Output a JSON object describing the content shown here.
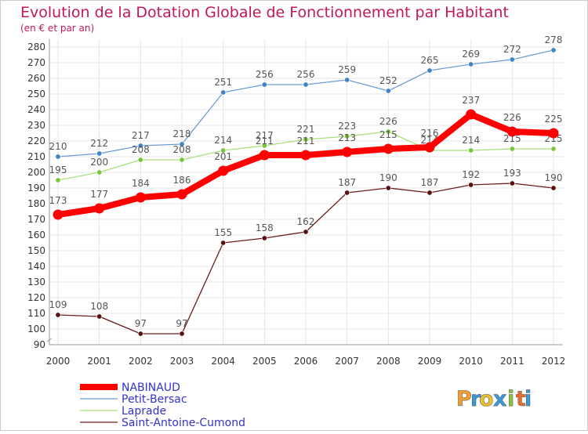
{
  "chart_data": {
    "type": "line",
    "title": "Evolution de la Dotation Globale de Fonctionnement par Habitant",
    "subtitle": "(en € et par an)",
    "xlabel": "",
    "ylabel": "",
    "categories": [
      "2000",
      "2001",
      "2002",
      "2003",
      "2004",
      "2005",
      "2006",
      "2007",
      "2008",
      "2009",
      "2010",
      "2011",
      "2012"
    ],
    "ylim": [
      90,
      280
    ],
    "yticks": [
      90,
      100,
      110,
      120,
      130,
      140,
      150,
      160,
      170,
      180,
      190,
      200,
      210,
      220,
      230,
      240,
      250,
      260,
      270,
      280
    ],
    "grid": true,
    "legend_position": "bottom-left",
    "series": [
      {
        "name": "Saint-Antoine-Cumond",
        "color": "#6b1d1d",
        "dot_color": "#5a1010",
        "width": "thin",
        "values": [
          109,
          108,
          97,
          97,
          155,
          158,
          162,
          187,
          190,
          187,
          192,
          193,
          190
        ]
      },
      {
        "name": "Petit-Bersac",
        "color": "#6b9ed6",
        "dot_color": "#3f84c6",
        "width": "thin",
        "values": [
          210,
          212,
          217,
          218,
          251,
          256,
          256,
          259,
          252,
          265,
          269,
          272,
          278
        ]
      },
      {
        "name": "Laprade",
        "color": "#a8e07c",
        "dot_color": "#79c63c",
        "width": "thin",
        "values": [
          195,
          200,
          208,
          208,
          214,
          217,
          221,
          223,
          226,
          214,
          214,
          215,
          215
        ]
      },
      {
        "name": "NABINAUD",
        "color": "#ff0000",
        "dot_color": "#ff0000",
        "width": "thick",
        "values": [
          173,
          177,
          184,
          186,
          201,
          211,
          211,
          213,
          215,
          216,
          237,
          226,
          225
        ]
      }
    ],
    "legend": [
      "NABINAUD",
      "Petit-Bersac",
      "Laprade",
      "Saint-Antoine-Cumond"
    ]
  },
  "brand": {
    "letters": [
      "P",
      "r",
      "o",
      "x",
      "i",
      "t",
      "i"
    ],
    "colors": [
      "#f0a030",
      "#3a9ad9",
      "#e8c030",
      "#3a9ad9",
      "#8ac43f",
      "#e86b2a",
      "#3a9ad9"
    ]
  },
  "colors": {
    "title": "#c2185b",
    "axis_text": "#333333",
    "label_text": "#555555",
    "legend_text": "#3333cc",
    "grid": "#e6e6e6",
    "frame": "#cccccc"
  }
}
